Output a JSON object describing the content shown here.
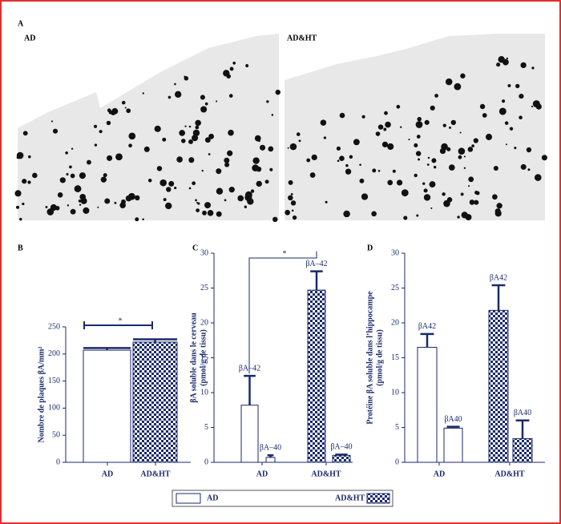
{
  "panel_a": {
    "label": "A",
    "left_title": "AD",
    "right_title": "AD&HT"
  },
  "chart_data": [
    {
      "type": "bar",
      "panel": "B",
      "ylabel": [
        "Nombre de plaques βA/mm²"
      ],
      "categories": [
        "AD",
        "AD&HT"
      ],
      "values": [
        207,
        222
      ],
      "errors": [
        4,
        5
      ],
      "category_patterns": [
        "none",
        "checker"
      ],
      "color": "#1a2a6c",
      "ylim": [
        0,
        250
      ],
      "yticks": [
        0,
        50,
        100,
        150,
        200,
        250
      ],
      "annotation": "*"
    },
    {
      "type": "grouped_bar",
      "panel": "C",
      "ylabel": [
        "βA soluble dans le cerveau",
        "(pmol/g de tissu)"
      ],
      "categories": [
        "AD",
        "AD&HT"
      ],
      "series": [
        {
          "name": "βA–42",
          "values": [
            8.2,
            24.7
          ],
          "errors": [
            4.2,
            2.7
          ]
        },
        {
          "name": "βA–40",
          "values": [
            0.7,
            1.0
          ],
          "errors": [
            0.3,
            0.1
          ]
        }
      ],
      "category_patterns": [
        "none",
        "checker"
      ],
      "color": "#1a2a6c",
      "ylim": [
        0,
        30
      ],
      "yticks": [
        0,
        5,
        10,
        15,
        20,
        25,
        30
      ],
      "annotation": "*"
    },
    {
      "type": "grouped_bar",
      "panel": "D",
      "ylabel": [
        "Protéine βA soluble dans l’hippocampe",
        "(pmol/g de tissu)"
      ],
      "categories": [
        "AD",
        "AD&HT"
      ],
      "series": [
        {
          "name": "βA42",
          "values": [
            16.5,
            21.8
          ],
          "errors": [
            1.9,
            3.6
          ]
        },
        {
          "name": "βA40",
          "values": [
            4.9,
            3.4
          ],
          "errors": [
            0.2,
            2.6
          ]
        }
      ],
      "category_patterns": [
        "none",
        "checker"
      ],
      "color": "#1a2a6c",
      "ylim": [
        0,
        30
      ],
      "yticks": [
        0,
        5,
        10,
        15,
        20,
        25,
        30
      ]
    }
  ],
  "legend": [
    "AD",
    "AD&HT"
  ]
}
